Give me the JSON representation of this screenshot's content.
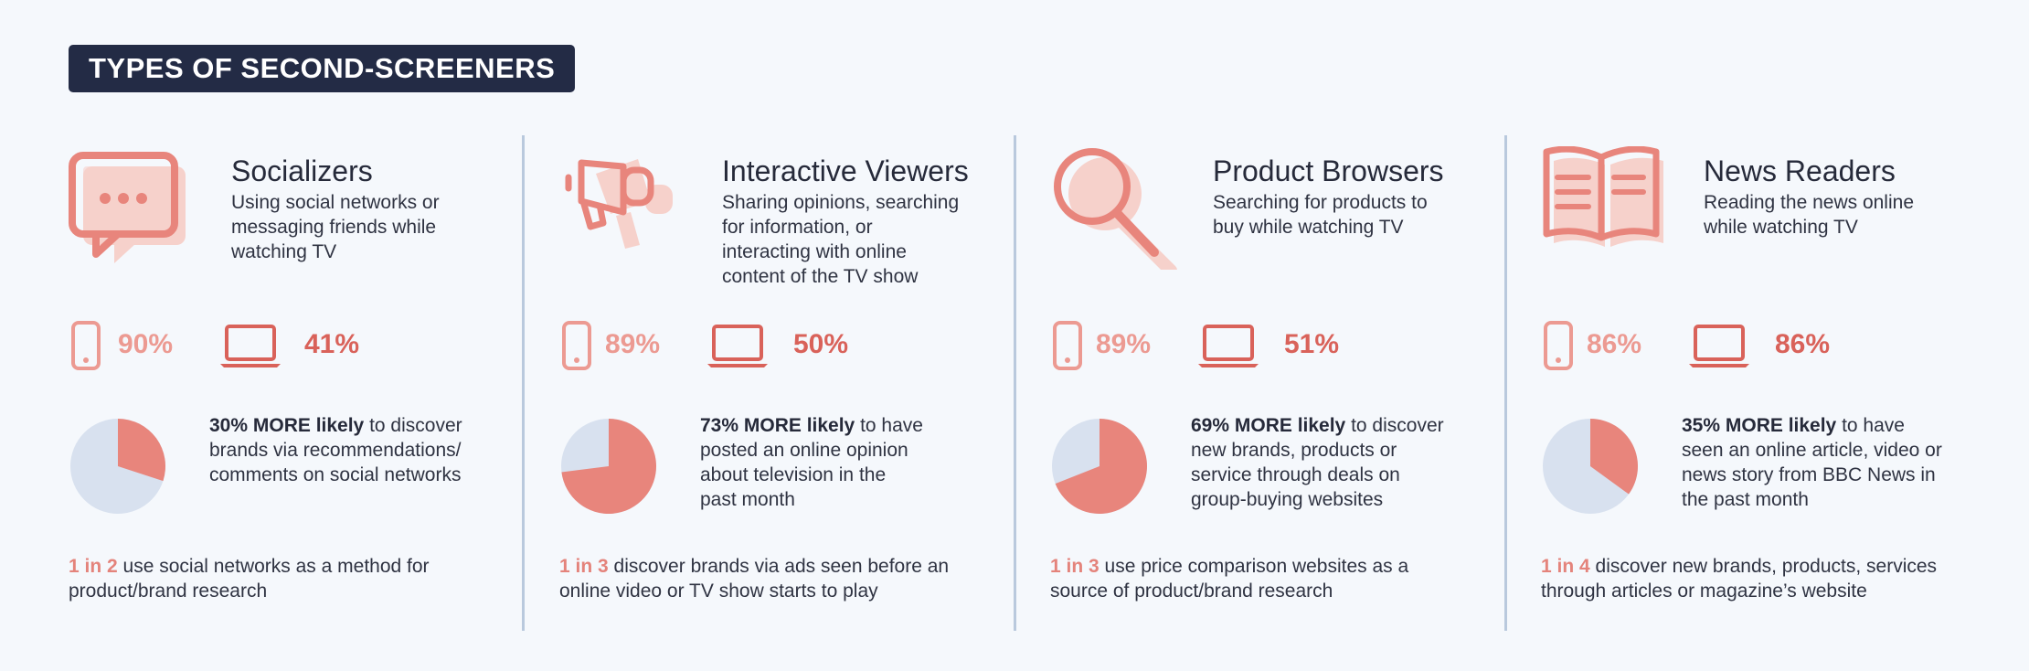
{
  "title": "TYPES OF SECOND-SCREENERS",
  "colors": {
    "dark_navy": "#232b45",
    "mobile_pct": "#ec9a92",
    "laptop_pct": "#d9625a",
    "pie_fill": "#e8857c",
    "pie_bg": "#d8e1ef",
    "highlight": "#e4837b",
    "divider": "#b9c9dd"
  },
  "columns": [
    {
      "icon": "chat-bubble-icon",
      "name": "Socializers",
      "desc": "Using social networks or\nmessaging friends while\nwatching TV",
      "mobile_pct": "90%",
      "laptop_pct": "41%",
      "stat_bold": "30% MORE likely",
      "stat_rest": " to discover\nbrands via recommendations/\ncomments on social networks",
      "pie_fraction": 0.3,
      "foot_highlight": "1 in 2",
      "foot_rest": " use social networks as a method for\nproduct/brand research"
    },
    {
      "icon": "megaphone-icon",
      "name": "Interactive Viewers",
      "desc": "Sharing opinions, searching\nfor information, or\ninteracting with online\ncontent of the TV show",
      "mobile_pct": "89%",
      "laptop_pct": "50%",
      "stat_bold": "73% MORE likely",
      "stat_rest": " to have\nposted an online opinion\nabout television in the\npast month",
      "pie_fraction": 0.73,
      "foot_highlight": "1 in 3",
      "foot_rest": " discover brands via ads seen before an\nonline video or TV show starts to play"
    },
    {
      "icon": "magnifier-icon",
      "name": "Product Browsers",
      "desc": "Searching for products to\nbuy while watching TV",
      "mobile_pct": "89%",
      "laptop_pct": "51%",
      "stat_bold": "69% MORE likely",
      "stat_rest": " to discover\nnew brands, products or\nservice through deals on\ngroup-buying websites",
      "pie_fraction": 0.69,
      "foot_highlight": "1 in 3",
      "foot_rest": " use price comparison websites as a\nsource of product/brand research"
    },
    {
      "icon": "open-book-icon",
      "name": "News Readers",
      "desc": "Reading the news online\nwhile watching TV",
      "mobile_pct": "86%",
      "laptop_pct": "86%",
      "stat_bold": "35% MORE likely",
      "stat_rest": " to have\nseen an online article, video or\nnews story from BBC News in\nthe past month",
      "pie_fraction": 0.35,
      "foot_highlight": "1 in 4",
      "foot_rest": " discover new brands, products, services\nthrough articles or magazine’s website"
    }
  ]
}
